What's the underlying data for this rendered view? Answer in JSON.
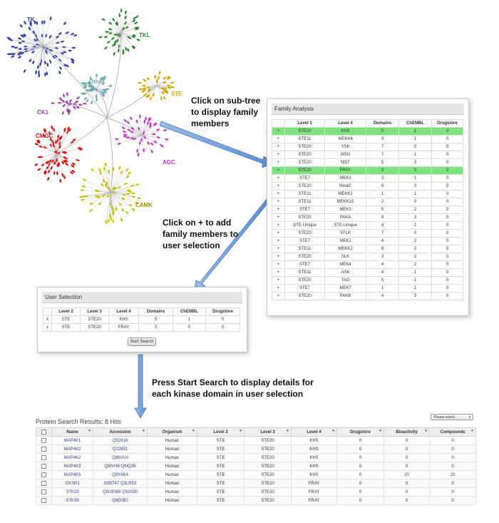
{
  "tree": {
    "labels": [
      {
        "text": "TK",
        "color": "#2b3fb0"
      },
      {
        "text": "TKL",
        "color": "#2a8a2a"
      },
      {
        "text": "Other",
        "color": "#6aa9b0"
      },
      {
        "text": "STE",
        "color": "#d9a800"
      },
      {
        "text": "CK1",
        "color": "#a040b0"
      },
      {
        "text": "CMGC",
        "color": "#e01010"
      },
      {
        "text": "AGC",
        "color": "#d030d0"
      },
      {
        "text": "CAMK",
        "color": "#a08a00"
      }
    ]
  },
  "callouts": {
    "subtree": [
      "Click on sub-tree",
      "to display family",
      "members"
    ],
    "plus": [
      "Click on + to add",
      "family members to",
      "user selection"
    ],
    "search": [
      "Press Start Search to display details for",
      "each kinase domain in user selection"
    ]
  },
  "family": {
    "title": "Family Analysis",
    "headers": [
      "",
      "Level 3",
      "Level 4",
      "Domains",
      "ChEMBL",
      "Drugstore"
    ],
    "rows": [
      [
        "+",
        "STE20",
        "KHS",
        "5",
        "1",
        "0"
      ],
      [
        "+",
        "STE11",
        "MEKK4",
        "3",
        "1",
        "0"
      ],
      [
        "+",
        "STE20",
        "YSK",
        "7",
        "0",
        "0"
      ],
      [
        "+",
        "STE20",
        "MSN",
        "7",
        "1",
        "0"
      ],
      [
        "+",
        "STE20",
        "MST",
        "5",
        "3",
        "0"
      ],
      [
        "+",
        "STE20",
        "FRAY",
        "3",
        "0",
        "0"
      ],
      [
        "+",
        "STE7",
        "MEK3",
        "3",
        "1",
        "0"
      ],
      [
        "+",
        "STE20",
        "NinaC",
        "6",
        "0",
        "0"
      ],
      [
        "+",
        "STE11",
        "MEKK1",
        "1",
        "1",
        "0"
      ],
      [
        "+",
        "STE11",
        "MEKK15",
        "2",
        "0",
        "0"
      ],
      [
        "+",
        "STE7",
        "MEK3",
        "5",
        "2",
        "0"
      ],
      [
        "+",
        "STE20",
        "PAKA",
        "9",
        "3",
        "0"
      ],
      [
        "+",
        "STE-Unique",
        "STE-Unique",
        "4",
        "1",
        "0"
      ],
      [
        "+",
        "STE20",
        "STLK",
        "7",
        "0",
        "0"
      ],
      [
        "+",
        "STE7",
        "MEK1",
        "4",
        "2",
        "0"
      ],
      [
        "+",
        "STE11",
        "MEKK2",
        "6",
        "0",
        "0"
      ],
      [
        "+",
        "STE20",
        "SLK",
        "3",
        "2",
        "0"
      ],
      [
        "+",
        "STE7",
        "MEK4",
        "4",
        "2",
        "0"
      ],
      [
        "+",
        "STE11",
        "ASK",
        "4",
        "1",
        "0"
      ],
      [
        "+",
        "STE20",
        "TAO",
        "5",
        "1",
        "0"
      ],
      [
        "+",
        "STE7",
        "MEK7",
        "1",
        "1",
        "0"
      ],
      [
        "+",
        "STE20",
        "PAKB",
        "4",
        "3",
        "0"
      ]
    ],
    "highlighted": [
      0,
      5
    ],
    "highlight_color": "#7ee27e"
  },
  "selection": {
    "title": "User Selection",
    "headers": [
      "",
      "Level 2",
      "Level 3",
      "Level 4",
      "Domains",
      "ChEMBL",
      "Drugstore"
    ],
    "rows": [
      [
        "x",
        "STE",
        "STE20",
        "KHS",
        "5",
        "1",
        "0"
      ],
      [
        "x",
        "STE",
        "STE20",
        "FRAY",
        "3",
        "0",
        "0"
      ]
    ],
    "button": "Start Search"
  },
  "results": {
    "title": "Protein Search Results: 8 Hits",
    "select_placeholder": "Please select...",
    "headers": [
      "",
      "Name",
      "Accession",
      "Organism",
      "Level 2",
      "Level 3",
      "Level 4",
      "Drugstore",
      "Bioactivity",
      "Compounds"
    ],
    "rows": [
      [
        "MAP4K1",
        "Q92918",
        "Human",
        "STE",
        "STE20",
        "KHS",
        "0",
        "0",
        "0"
      ],
      [
        "MAP4K2",
        "Q12851",
        "Human",
        "STE",
        "STE20",
        "KHS",
        "0",
        "0",
        "0"
      ],
      [
        "MAP4K2",
        "Q86VU3",
        "Human",
        "STE",
        "STE20",
        "KHS",
        "0",
        "0",
        "0"
      ],
      [
        "MAP4K3",
        "Q8IVH8 Q6IQ39",
        "Human",
        "STE",
        "STE20",
        "KHS",
        "0",
        "0",
        "0"
      ],
      [
        "MAP4K5",
        "Q9Y4K4",
        "Human",
        "STE",
        "STE20",
        "KHS",
        "0",
        "20",
        "20"
      ],
      [
        "OXSR1",
        "O95747 Q3LR53",
        "Human",
        "STE",
        "STE20",
        "FRAY",
        "0",
        "0",
        "0"
      ],
      [
        "STK39",
        "Q9UEW8 Q53S90",
        "Human",
        "STE",
        "STE20",
        "FRAY",
        "0",
        "0",
        "0"
      ],
      [
        "STK39",
        "Q6E0B2",
        "Human",
        "STE",
        "STE20",
        "FRAY",
        "0",
        "0",
        "0"
      ]
    ]
  }
}
